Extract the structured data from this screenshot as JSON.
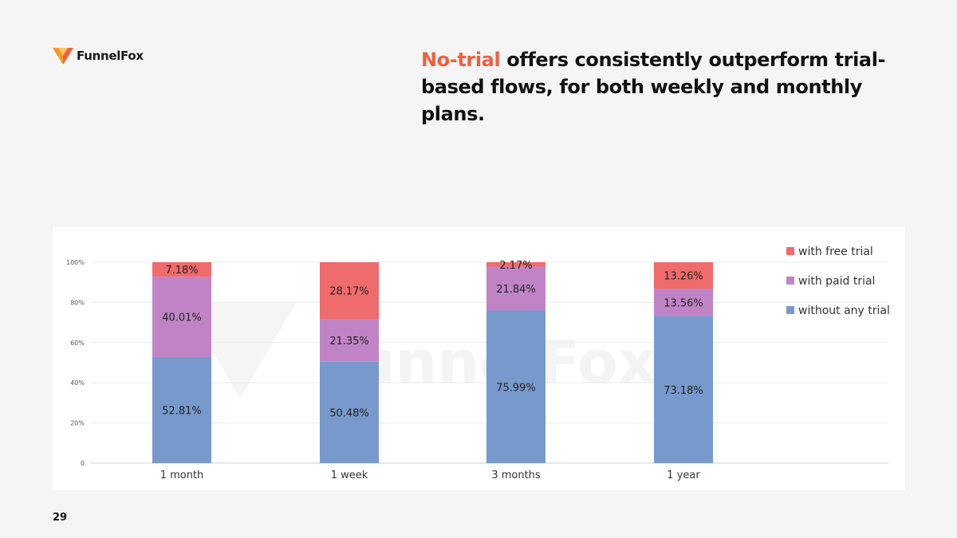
{
  "brand": {
    "name": "FunnelFox",
    "accent": "#f0603e"
  },
  "headline": {
    "accent_text": "No-trial",
    "rest_text": " offers consistently outperform trial-based flows, for both weekly and monthly plans."
  },
  "page_number": "29",
  "chart_data": {
    "type": "bar",
    "stacked": true,
    "categories": [
      "1 month",
      "1 week",
      "3 months",
      "1 year"
    ],
    "series": [
      {
        "name": "without any trial",
        "color": "#7799cc",
        "values": [
          52.81,
          50.48,
          75.99,
          73.18
        ],
        "labels": [
          "52.81%",
          "50.48%",
          "75.99%",
          "73.18%"
        ]
      },
      {
        "name": "with paid trial",
        "color": "#c084c6",
        "values": [
          40.01,
          21.35,
          21.84,
          13.56
        ],
        "labels": [
          "40.01%",
          "21.35%",
          "21.84%",
          "13.56%"
        ]
      },
      {
        "name": "with free trial",
        "color": "#f06b6b",
        "values": [
          7.18,
          28.17,
          2.17,
          13.26
        ],
        "labels": [
          "7.18%",
          "28.17%",
          "2.17%",
          "13.26%"
        ]
      }
    ],
    "legend_order": [
      "with free trial",
      "with paid trial",
      "without any trial"
    ],
    "legend_position": "right",
    "y_ticks": [
      "0",
      "20%",
      "40%",
      "60%",
      "80%",
      "100%"
    ],
    "ylim": [
      0,
      100
    ],
    "grid": true,
    "watermark": "FunnelFox"
  }
}
